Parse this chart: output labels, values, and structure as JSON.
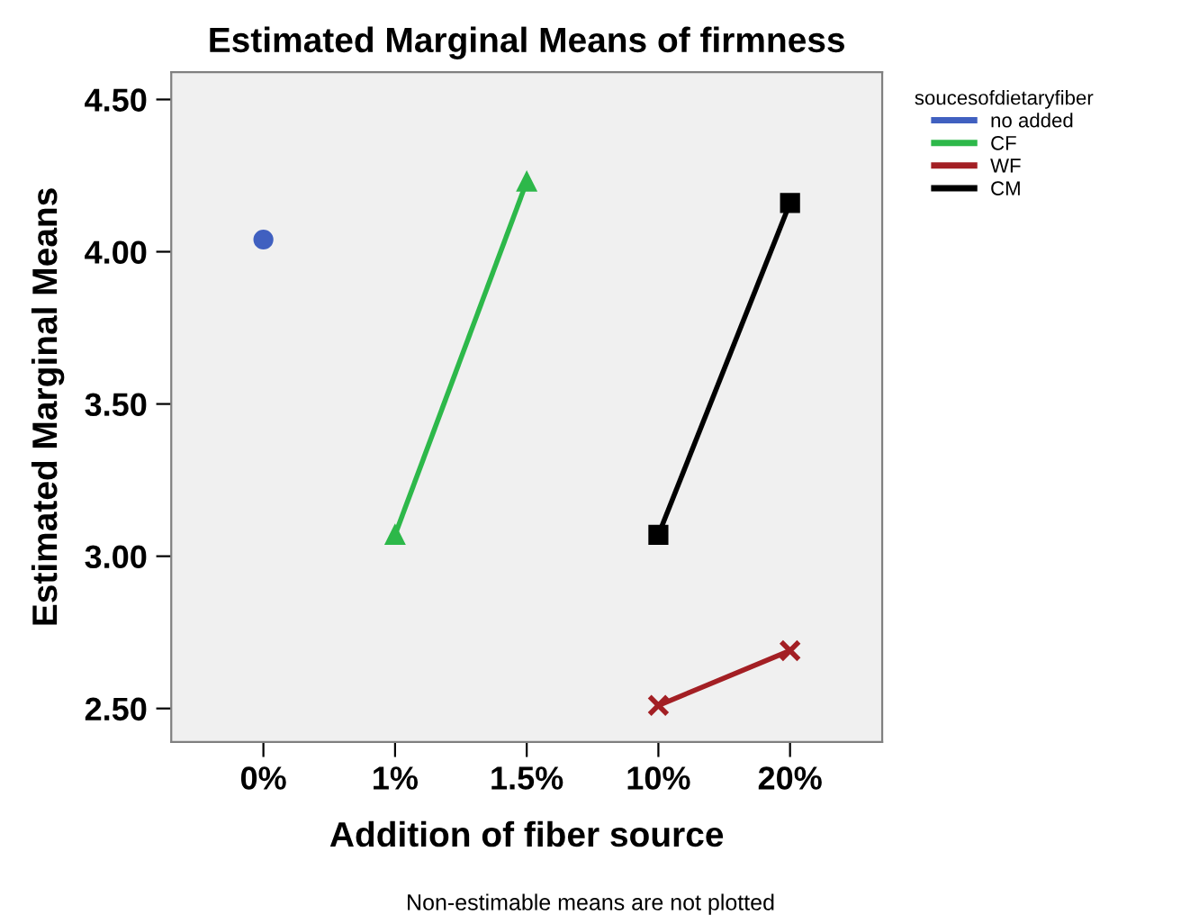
{
  "chart_data": {
    "type": "line",
    "title": "Estimated Marginal Means of firmness",
    "xlabel": "Addition of fiber source",
    "ylabel": "Estimated Marginal Means",
    "categories": [
      "0%",
      "1%",
      "1.5%",
      "10%",
      "20%"
    ],
    "series": [
      {
        "name": "no added",
        "color": "#4060c0",
        "marker": "circle",
        "values": [
          4.04,
          null,
          null,
          null,
          null
        ]
      },
      {
        "name": "CF",
        "color": "#2db84a",
        "marker": "triangle",
        "values": [
          null,
          3.07,
          4.23,
          null,
          null
        ]
      },
      {
        "name": "WF",
        "color": "#a31f24",
        "marker": "cross",
        "values": [
          null,
          null,
          null,
          2.51,
          2.69
        ]
      },
      {
        "name": "CM",
        "color": "#000000",
        "marker": "square",
        "values": [
          null,
          null,
          null,
          3.07,
          4.16
        ]
      }
    ],
    "ylim": [
      2.39,
      4.59
    ],
    "yticks": [
      {
        "value": 2.5,
        "label": "2.50"
      },
      {
        "value": 3,
        "label": "3.00"
      },
      {
        "value": 3.5,
        "label": "3.50"
      },
      {
        "value": 4,
        "label": "4.00"
      },
      {
        "value": 4.5,
        "label": "4.50"
      }
    ],
    "legend": "top right",
    "legend_title": "soucesofdietaryfiber",
    "grid": false,
    "annotations": [
      "Non-estimable means are not plotted"
    ]
  }
}
